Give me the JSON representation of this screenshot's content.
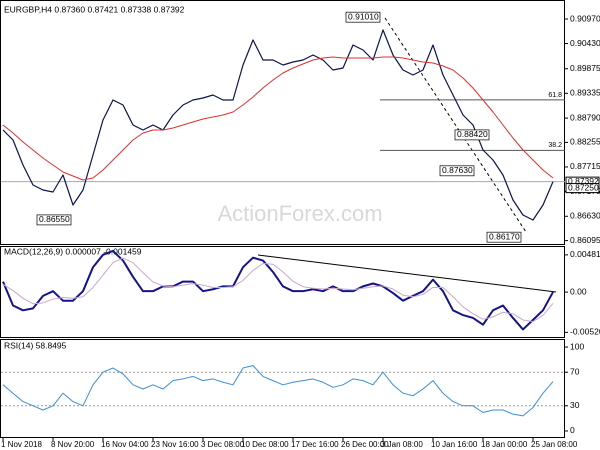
{
  "watermark": "ActionForex.com",
  "chart_data": [
    {
      "type": "line",
      "title": "EURGBP,H4  0.87360 0.87421 0.87338 0.87392",
      "ylim": [
        0.8602,
        0.913
      ],
      "yticks": [
        {
          "value": 0.9097,
          "label": "0.90970"
        },
        {
          "value": 0.9043,
          "label": "0.90430"
        },
        0.89875,
        0.89335,
        {
          "value": 0.8879,
          "label": "0.88790"
        },
        0.88255,
        0.87715,
        0.87175,
        {
          "value": 0.8663,
          "label": "0.86630"
        },
        0.86095
      ],
      "series": [
        {
          "name": "EURGBP",
          "color": "#0b1450",
          "values": [
            0.88528,
            0.88308,
            0.87758,
            0.87318,
            0.87208,
            0.87164,
            0.87538,
            0.86878,
            0.87208,
            0.87978,
            0.88748,
            0.89188,
            0.89078,
            0.88638,
            0.88528,
            0.88638,
            0.88528,
            0.88858,
            0.89078,
            0.89188,
            0.89232,
            0.89298,
            0.89188,
            0.89188,
            0.89958,
            0.90508,
            0.90068,
            0.90068,
            0.89958,
            0.90024,
            0.90068,
            0.90178,
            0.90068,
            0.89848,
            0.89892,
            0.90398,
            0.90288,
            0.90068,
            0.90728,
            0.90178,
            0.89848,
            0.89738,
            0.89848,
            0.90398,
            0.89738,
            0.89298,
            0.88858,
            0.88638,
            0.88088,
            0.87868,
            0.87538,
            0.86988,
            0.86658,
            0.86548,
            0.86878,
            0.87392
          ]
        },
        {
          "name": "MA",
          "color": "#e0302c",
          "values": [
            0.88638,
            0.88462,
            0.88264,
            0.88088,
            0.87912,
            0.87758,
            0.87604,
            0.87516,
            0.87428,
            0.87472,
            0.87648,
            0.87868,
            0.88088,
            0.88308,
            0.88462,
            0.88528,
            0.88528,
            0.88572,
            0.88638,
            0.88704,
            0.8877,
            0.88814,
            0.88858,
            0.88924,
            0.89078,
            0.89254,
            0.89452,
            0.89628,
            0.89782,
            0.89892,
            0.8998,
            0.90068,
            0.90112,
            0.90134,
            0.90112,
            0.90112,
            0.90112,
            0.90112,
            0.90134,
            0.90134,
            0.90112,
            0.90068,
            0.90024,
            0.90002,
            0.89936,
            0.89848,
            0.89672,
            0.89452,
            0.89188,
            0.88924,
            0.88638,
            0.88352,
            0.88088,
            0.87868,
            0.87648,
            0.87472
          ]
        }
      ],
      "price_tags": [
        0.87392,
        {
          "value": 0.8725,
          "label": "0.87250"
        }
      ],
      "fib_levels": [
        {
          "label": "61.8",
          "price": 0.8919
        },
        {
          "label": "38.2",
          "price": 0.8808
        }
      ],
      "annotations": [
        {
          "label": "0.91010",
          "price": 0.9101
        },
        {
          "label": "0.86550",
          "price": 0.8655
        },
        {
          "label": "0.88420",
          "price": 0.8842
        },
        {
          "label": "0.87630",
          "price": 0.8763
        },
        {
          "label": "0.86170",
          "price": 0.8617
        }
      ]
    },
    {
      "type": "line",
      "title": "MACD(12,26,9) 0.000007 -0.001459",
      "ylim": [
        -0.0058,
        0.0057
      ],
      "yticks": [
        0.004815,
        {
          "value": 0,
          "label": "0.00"
        },
        -0.005204
      ],
      "series": [
        {
          "name": "MACD",
          "color": "#14148a",
          "values": [
            0.00136,
            -0.00173,
            -0.00235,
            -0.0021,
            -0.00049,
            0.00012,
            -0.00111,
            -0.00111,
            0.00012,
            0.00322,
            0.00482,
            0.00532,
            0.00408,
            0.00198,
            0.00012,
            0.00012,
            0.00074,
            0.00074,
            0.00136,
            0.00136,
            0.00012,
            0.00037,
            0.00074,
            0.00074,
            0.00322,
            0.00445,
            0.00408,
            0.0026,
            0.00074,
            0.00012,
            0.00012,
            0.00037,
            0.00012,
            0.00074,
            0.00012,
            0.00012,
            0.00074,
            0.00111,
            0.00074,
            -0.00012,
            -0.00111,
            -0.00049,
            0.00012,
            0.00161,
            0.00012,
            -0.00235,
            -0.00297,
            -0.00334,
            -0.00421,
            -0.00235,
            -0.00173,
            -0.00334,
            -0.00482,
            -0.00359,
            -0.00235,
            7e-06
          ]
        },
        {
          "name": "Signal",
          "color": "#c9a8cc",
          "values": [
            0.001,
            0.0002,
            -0.0008,
            -0.0015,
            -0.0014,
            -0.0009,
            -0.0007,
            -0.0008,
            -0.0006,
            0.0006,
            0.0022,
            0.0038,
            0.0044,
            0.0038,
            0.0025,
            0.0013,
            0.0008,
            0.0007,
            0.0009,
            0.0011,
            0.0009,
            0.0006,
            0.0006,
            0.0007,
            0.0015,
            0.0028,
            0.0037,
            0.0036,
            0.0026,
            0.0014,
            0.0007,
            0.0005,
            0.0004,
            0.0005,
            0.0004,
            0.0003,
            0.0005,
            0.0007,
            0.0008,
            0.0004,
            -0.0004,
            -0.0006,
            -0.0003,
            0.0006,
            0.0006,
            -0.0006,
            -0.0019,
            -0.0028,
            -0.0035,
            -0.0032,
            -0.0026,
            -0.0028,
            -0.0036,
            -0.0038,
            -0.003,
            -0.001459
          ]
        }
      ]
    },
    {
      "type": "line",
      "title": "RSI(14) 58.8495",
      "ylim": [
        -6,
        106
      ],
      "yticks": [
        100,
        70,
        30,
        0
      ],
      "dashed_levels": [
        70,
        30
      ],
      "categories": [
        "1 Nov 2018",
        null,
        null,
        null,
        null,
        "8 Nov 20:00",
        null,
        null,
        null,
        null,
        "16 Nov 04:00",
        null,
        null,
        null,
        null,
        "23 Nov 16:00",
        null,
        null,
        null,
        null,
        "3 Dec 08:00",
        null,
        null,
        null,
        "10 Dec 08:00",
        null,
        null,
        null,
        null,
        "17 Dec 16:00",
        null,
        null,
        null,
        null,
        "26 Dec 00:00",
        null,
        null,
        null,
        "3 Jan 08:00",
        null,
        null,
        null,
        null,
        "10 Jan 16:00",
        null,
        null,
        null,
        null,
        "18 Jan 00:00",
        null,
        null,
        null,
        null,
        "25 Jan 08:00",
        null,
        null
      ],
      "series": [
        {
          "name": "RSI",
          "color": "#3a8fd8",
          "values": [
            55,
            45,
            35,
            30,
            25,
            30,
            45,
            35,
            30,
            55,
            70,
            75,
            68,
            55,
            50,
            55,
            50,
            60,
            62,
            65,
            60,
            62,
            58,
            55,
            75,
            78,
            65,
            60,
            55,
            58,
            60,
            62,
            58,
            52,
            55,
            62,
            60,
            55,
            70,
            55,
            45,
            42,
            50,
            60,
            45,
            35,
            30,
            30,
            22,
            25,
            25,
            20,
            18,
            28,
            45,
            58.8495
          ]
        }
      ]
    }
  ]
}
